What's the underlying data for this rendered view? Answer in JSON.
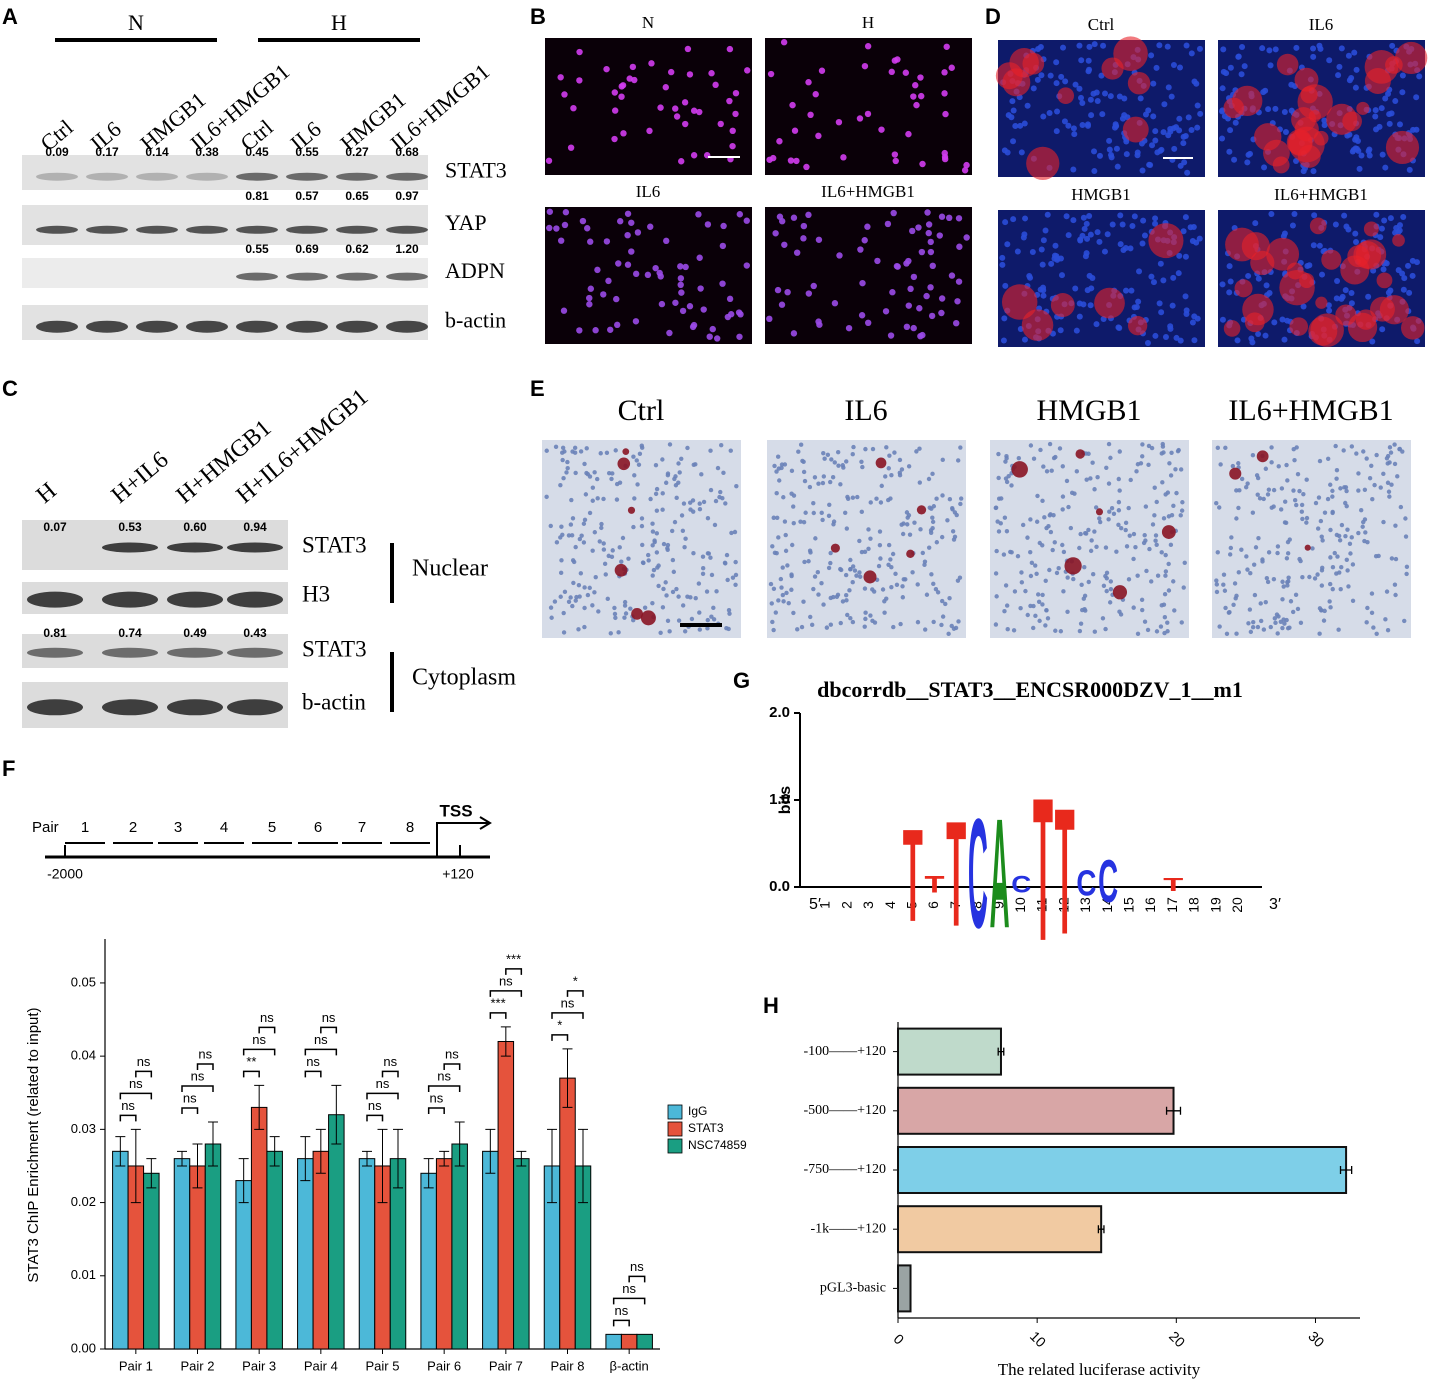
{
  "figure": {
    "A": {
      "label": "A",
      "groups": [
        "N",
        "H"
      ],
      "lanes": [
        "Ctrl",
        "IL6",
        "HMGB1",
        "IL6+HMGB1",
        "Ctrl",
        "IL6",
        "HMGB1",
        "IL6+HMGB1"
      ],
      "blots": [
        {
          "name": "STAT3",
          "quant": [
            "0.09",
            "0.17",
            "0.14",
            "0.38",
            "0.45",
            "0.55",
            "0.27",
            "0.68"
          ]
        },
        {
          "name": "YAP",
          "quant": [
            "0.81",
            "0.57",
            "0.65",
            "0.97"
          ]
        },
        {
          "name": "ADPN",
          "quant": [
            "0.55",
            "0.69",
            "0.62",
            "1.20"
          ]
        },
        {
          "name": "b-actin"
        }
      ]
    },
    "B": {
      "label": "B",
      "images": [
        "N",
        "H",
        "IL6",
        "IL6+HMGB1"
      ]
    },
    "C": {
      "label": "C",
      "lanes": [
        "H",
        "H+IL6",
        "H+HMGB1",
        "H+IL6+HMGB1"
      ],
      "blots": [
        {
          "name": "STAT3",
          "quant": [
            "0.07",
            "0.53",
            "0.60",
            "0.94"
          ]
        },
        {
          "name": "H3"
        },
        {
          "name": "STAT3",
          "quant": [
            "0.81",
            "0.74",
            "0.49",
            "0.43"
          ]
        },
        {
          "name": "b-actin"
        }
      ],
      "fractions": [
        "Nuclear",
        "Cytoplasm"
      ]
    },
    "D": {
      "label": "D",
      "images": [
        "Ctrl",
        "IL6",
        "HMGB1",
        "IL6+HMGB1"
      ]
    },
    "E": {
      "label": "E",
      "images": [
        "Ctrl",
        "IL6",
        "HMGB1",
        "IL6+HMGB1"
      ]
    },
    "F": {
      "label": "F",
      "pair_label": "Pair",
      "pairs": [
        "1",
        "2",
        "3",
        "4",
        "5",
        "6",
        "7",
        "8"
      ],
      "tss": "TSS",
      "start": "-2000",
      "end": "+120"
    },
    "G": {
      "label": "G",
      "title": "dbcorrdb__STAT3__ENCSR000DZV_1__m1",
      "ylabel": "bits",
      "yticks": [
        {
          "value": 0,
          "label": "0.0"
        },
        {
          "value": 1,
          "label": "1.0"
        },
        {
          "value": 2,
          "label": "2.0"
        }
      ],
      "ylim": [
        0,
        2
      ],
      "positions": [
        1,
        2,
        3,
        4,
        5,
        6,
        7,
        8,
        9,
        10,
        11,
        12,
        13,
        14,
        15,
        16,
        17,
        18,
        19,
        20
      ],
      "five_prime": "5′",
      "three_prime": "3′",
      "letter_colors": {
        "A": "#1c8c1c",
        "C": "#2633e0",
        "G": "#f2a20c",
        "T": "#e8291c"
      },
      "logo": [
        {
          "position": 5,
          "letter": "T",
          "bits": 1.1
        },
        {
          "position": 6,
          "letter": "T",
          "bits": 0.2
        },
        {
          "position": 7,
          "letter": "T",
          "bits": 1.25
        },
        {
          "position": 8,
          "letter": "C",
          "bits": 1.3
        },
        {
          "position": 9,
          "letter": "A",
          "bits": 1.3
        },
        {
          "position": 10,
          "letter": "C",
          "bits": 0.2
        },
        {
          "position": 11,
          "letter": "T",
          "bits": 1.7
        },
        {
          "position": 12,
          "letter": "T",
          "bits": 1.5
        },
        {
          "position": 13,
          "letter": "C",
          "bits": 0.3
        },
        {
          "position": 14,
          "letter": "C",
          "bits": 0.5
        },
        {
          "position": 17,
          "letter": "T",
          "bits": 0.15
        }
      ]
    },
    "H": {
      "label": "H"
    }
  },
  "chart_data": [
    {
      "type": "bar",
      "ylabel": "STAT3 ChIP Enrichment (related to input)",
      "categories": [
        "Pair 1",
        "Pair 2",
        "Pair 3",
        "Pair 4",
        "Pair 5",
        "Pair 6",
        "Pair 7",
        "Pair 8",
        "β-actin"
      ],
      "series": [
        {
          "name": "IgG",
          "color": "#4cb8d8",
          "values": [
            0.027,
            0.026,
            0.023,
            0.026,
            0.026,
            0.024,
            0.027,
            0.025,
            0.002
          ],
          "errors": [
            0.002,
            0.001,
            0.003,
            0.003,
            0.001,
            0.002,
            0.003,
            0.005,
            0
          ]
        },
        {
          "name": "STAT3",
          "color": "#e5533c",
          "values": [
            0.025,
            0.025,
            0.033,
            0.027,
            0.025,
            0.026,
            0.042,
            0.037,
            0.002
          ],
          "errors": [
            0.005,
            0.003,
            0.003,
            0.003,
            0.005,
            0.001,
            0.002,
            0.004,
            0
          ]
        },
        {
          "name": "NSC74859",
          "color": "#1a9e82",
          "values": [
            0.024,
            0.028,
            0.027,
            0.032,
            0.026,
            0.028,
            0.026,
            0.025,
            0.002
          ],
          "errors": [
            0.002,
            0.003,
            0.002,
            0.004,
            0.004,
            0.003,
            0.001,
            0.005,
            0
          ]
        }
      ],
      "significance": [
        [
          "ns",
          "ns",
          "ns"
        ],
        [
          "ns",
          "ns",
          "ns"
        ],
        [
          "**",
          "ns",
          "ns"
        ],
        [
          "ns",
          "ns",
          "ns"
        ],
        [
          "ns",
          "ns",
          "ns"
        ],
        [
          "ns",
          "ns",
          "ns"
        ],
        [
          "***",
          "ns",
          "***"
        ],
        [
          "*",
          "ns",
          "*"
        ],
        [
          "ns",
          "ns",
          "ns"
        ]
      ],
      "ylim": [
        0,
        0.056
      ],
      "yticks": [
        {
          "value": 0,
          "label": "0.00"
        },
        {
          "value": 0.01,
          "label": "0.01"
        },
        {
          "value": 0.02,
          "label": "0.02"
        },
        {
          "value": 0.03,
          "label": "0.03"
        },
        {
          "value": 0.04,
          "label": "0.04"
        },
        {
          "value": 0.05,
          "label": "0.05"
        }
      ],
      "legend": "right"
    },
    {
      "type": "hbar",
      "xlabel": "The related luciferase activity",
      "categories": [
        "-100——+120",
        "-500——+120",
        "-750——+120",
        "-1k——+120",
        "pGL3-basic"
      ],
      "values": [
        7.4,
        19.8,
        32.2,
        14.6,
        0.9
      ],
      "errors": [
        0.2,
        0.5,
        0.4,
        0.2,
        0
      ],
      "colors": [
        "#bfdacb",
        "#d8a6a6",
        "#7ecfe8",
        "#f1caa2",
        "#9aa3a3"
      ],
      "xlim": [
        0,
        33.2
      ],
      "xticks": [
        0,
        10,
        20,
        30
      ]
    }
  ]
}
